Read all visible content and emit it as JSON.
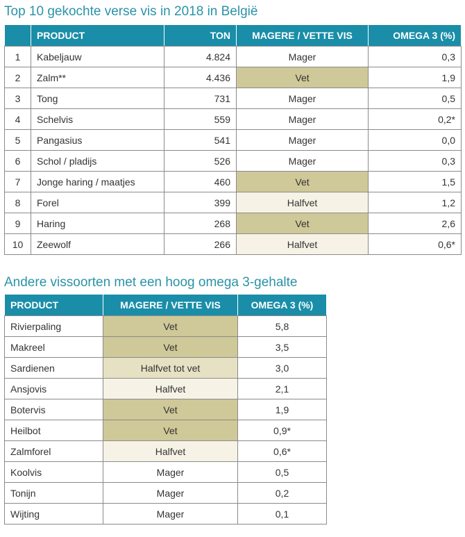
{
  "table1": {
    "title": "Top 10 gekochte verse vis in 2018 in België",
    "headers": [
      "",
      "PRODUCT",
      "TON",
      "MAGERE / VETTE VIS",
      "OMEGA 3 (%)"
    ],
    "rows": [
      [
        "1",
        "Kabeljauw",
        "4.824",
        "Mager",
        "0,3"
      ],
      [
        "2",
        "Zalm**",
        "4.436",
        "Vet",
        "1,9"
      ],
      [
        "3",
        "Tong",
        "731",
        "Mager",
        "0,5"
      ],
      [
        "4",
        "Schelvis",
        "559",
        "Mager",
        "0,2*"
      ],
      [
        "5",
        "Pangasius",
        "541",
        "Mager",
        "0,0"
      ],
      [
        "6",
        "Schol / pladijs",
        "526",
        "Mager",
        "0,3"
      ],
      [
        "7",
        "Jonge haring / maatjes",
        "460",
        "Vet",
        "1,5"
      ],
      [
        "8",
        "Forel",
        "399",
        "Halfvet",
        "1,2"
      ],
      [
        "9",
        "Haring",
        "268",
        "Vet",
        "2,6"
      ],
      [
        "10",
        "Zeewolf",
        "266",
        "Halfvet",
        "0,6*"
      ]
    ]
  },
  "table2": {
    "title": "Andere vissoorten met een hoog omega 3-gehalte",
    "headers": [
      "PRODUCT",
      "MAGERE / VETTE VIS",
      "OMEGA 3 (%)"
    ],
    "rows": [
      [
        "Rivierpaling",
        "Vet",
        "5,8"
      ],
      [
        "Makreel",
        "Vet",
        "3,5"
      ],
      [
        "Sardienen",
        "Halfvet tot vet",
        "3,0"
      ],
      [
        "Ansjovis",
        "Halfvet",
        "2,1"
      ],
      [
        "Botervis",
        "Vet",
        "1,9"
      ],
      [
        "Heilbot",
        "Vet",
        "0,9*"
      ],
      [
        "Zalmforel",
        "Halfvet",
        "0,6*"
      ],
      [
        "Koolvis",
        "Mager",
        "0,5"
      ],
      [
        "Tonijn",
        "Mager",
        "0,2"
      ],
      [
        "Wijting",
        "Mager",
        "0,1"
      ]
    ]
  },
  "colors": {
    "header": "#1a8ea8",
    "title": "#2a93a8",
    "vet": "#cfc898",
    "halfvet_tot_vet": "#e6e1c3",
    "halfvet": "#f6f3e6",
    "mager": "#ffffff"
  }
}
